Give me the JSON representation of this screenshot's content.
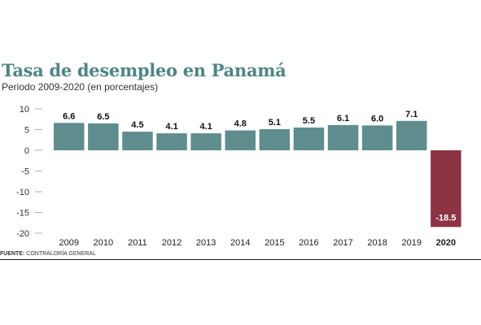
{
  "header": {
    "title": "Tasa de desempleo en Panamá",
    "subtitle": "Periodo 2009-2020 (en porcentajes)"
  },
  "footer": {
    "source_label": "FUENTE:",
    "source_text": " CONTRALORÍA GENERAL"
  },
  "colors": {
    "positive_bar": "#5f8d8e",
    "negative_bar": "#8c3444",
    "axis_text": "#333333",
    "title": "#4f8585"
  },
  "chart_data": {
    "type": "bar",
    "title": "Tasa de desempleo en Panamá",
    "subtitle": "Periodo 2009-2020 (en porcentajes)",
    "categories": [
      "2009",
      "2010",
      "2011",
      "2012",
      "2013",
      "2014",
      "2015",
      "2016",
      "2017",
      "2018",
      "2019",
      "2020"
    ],
    "values": [
      6.6,
      6.5,
      4.5,
      4.1,
      4.1,
      4.8,
      5.1,
      5.5,
      6.1,
      6.0,
      7.1,
      -18.5
    ],
    "data_labels": [
      "6.6",
      "6.5",
      "4.5",
      "4.1",
      "4.1",
      "4.8",
      "5.1",
      "5.5",
      "6.1",
      "6.0",
      "7.1",
      "-18.5"
    ],
    "y_ticks": [
      10,
      5,
      0,
      -5,
      -10,
      -15,
      -20
    ],
    "ylim": [
      -20,
      10
    ],
    "highlight_category": "2020",
    "grid": false,
    "xlabel": "",
    "ylabel": ""
  }
}
